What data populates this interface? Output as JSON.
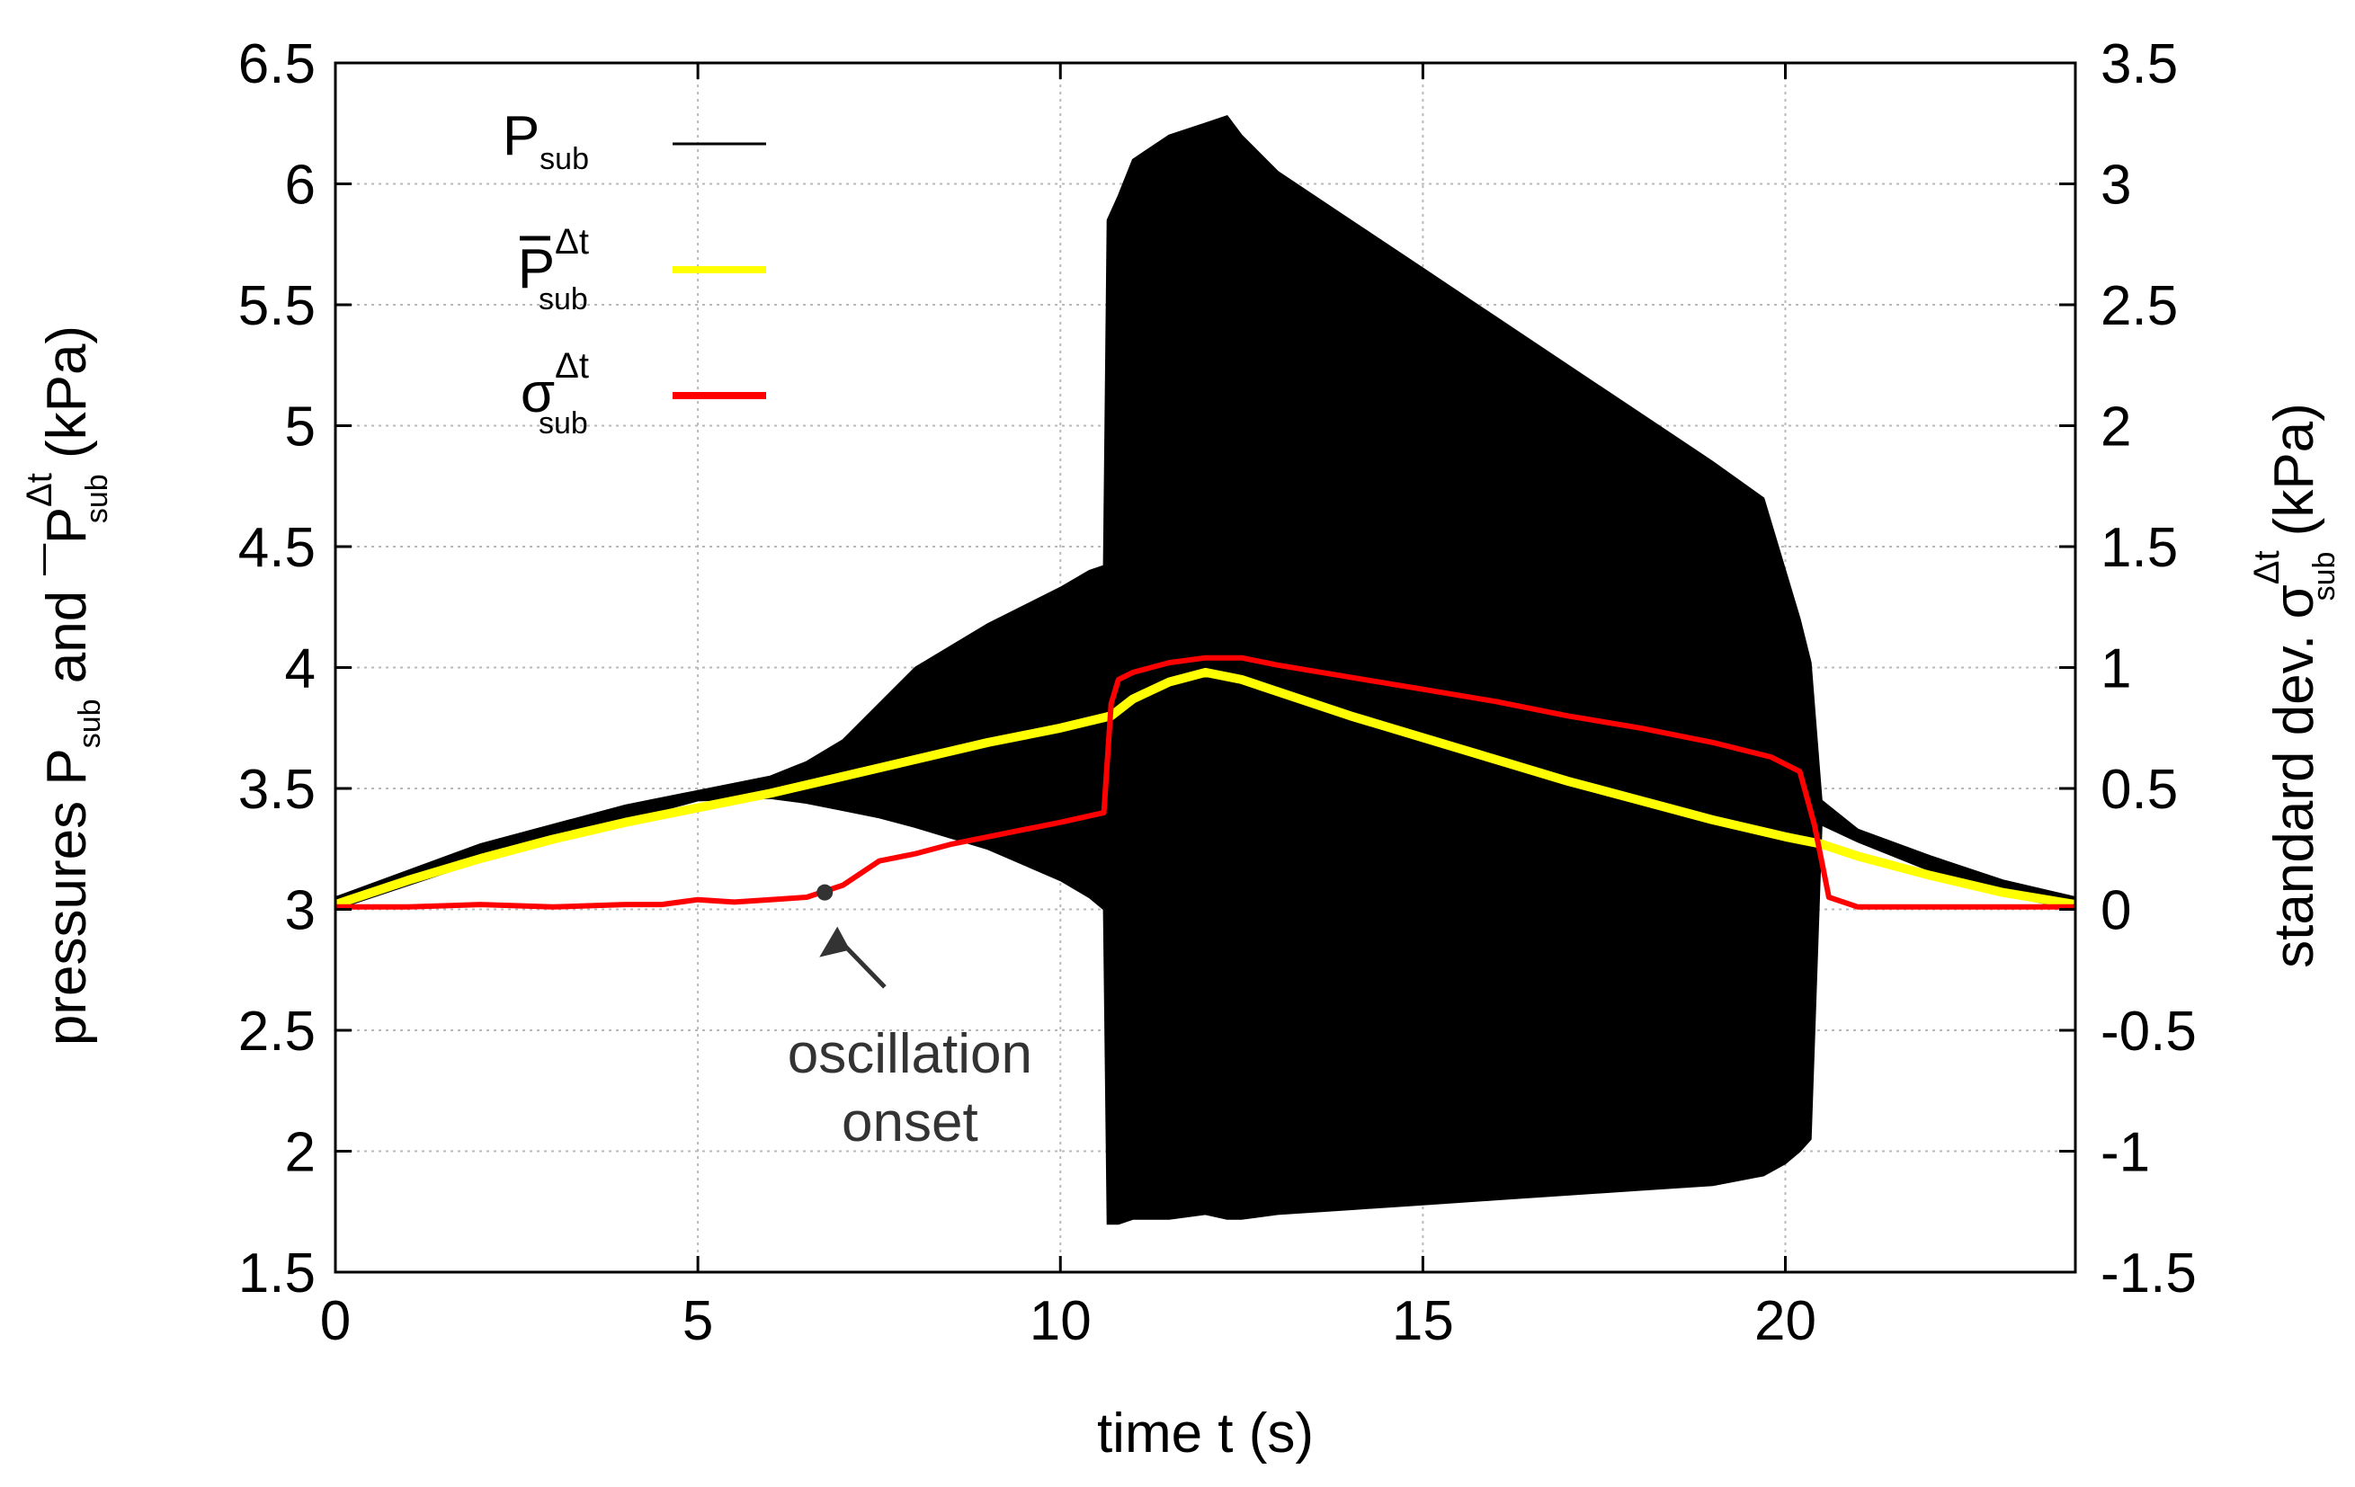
{
  "chart_data": {
    "type": "line",
    "title": "",
    "xlabel": "time t (s)",
    "ylabel": {
      "prefix": "pressures P",
      "sub1": "sub",
      "middle": "and",
      "sym": "P",
      "bar": "¯",
      "sub2": "sub",
      "sup": "Δt",
      "unit": "(kPa)"
    },
    "y2label": {
      "prefix": "standard dev.",
      "sym": "σ",
      "sub": "sub",
      "sup": "Δt",
      "unit": "(kPa)"
    },
    "xlim": [
      0,
      24
    ],
    "ylim": [
      1.5,
      6.5
    ],
    "y2lim": [
      -1.5,
      3.5
    ],
    "xticks": [
      0,
      5,
      10,
      15,
      20
    ],
    "xtick_labels": [
      "0",
      "5",
      "10",
      "15",
      "20"
    ],
    "yticks": [
      1.5,
      2,
      2.5,
      3,
      3.5,
      4,
      4.5,
      5,
      5.5,
      6,
      6.5
    ],
    "ytick_labels": [
      "1.5",
      "2",
      "2.5",
      "3",
      "3.5",
      "4",
      "4.5",
      "5",
      "5.5",
      "6",
      "6.5"
    ],
    "y2ticks": [
      -1.5,
      -1,
      -0.5,
      0,
      0.5,
      1,
      1.5,
      2,
      2.5,
      3,
      3.5
    ],
    "y2tick_labels": [
      "-1.5",
      "-1",
      "-0.5",
      "0",
      "0.5",
      "1",
      "1.5",
      "2",
      "2.5",
      "3",
      "3.5"
    ],
    "grid": true,
    "legend_position": "top-left",
    "legend": [
      {
        "sym": "P",
        "bar": "",
        "sub": "sub",
        "sup": "",
        "color": "#000000",
        "series": "P_sub"
      },
      {
        "sym": "P",
        "bar": "¯",
        "sub": "sub",
        "sup": "Δt",
        "color": "#ffff00",
        "series": "P_sub_mean"
      },
      {
        "sym": "σ",
        "bar": "",
        "sub": "sub",
        "sup": "Δt",
        "color": "#ff0000",
        "series": "sigma_sub"
      }
    ],
    "series": [
      {
        "name": "P_sub",
        "axis": "left",
        "color": "#000000",
        "kind": "oscillation-envelope",
        "x": [
          0,
          2,
          4,
          5,
          6,
          6.5,
          7,
          7.5,
          8,
          9,
          10,
          10.4,
          10.6,
          10.65,
          10.8,
          11,
          11.5,
          12,
          12.3,
          12.5,
          13,
          14,
          15,
          16,
          17,
          18,
          19,
          19.7,
          20.0,
          20.2,
          20.35,
          20.5,
          21,
          22,
          23,
          24
        ],
        "upper": [
          3.05,
          3.27,
          3.43,
          3.49,
          3.55,
          3.61,
          3.7,
          3.85,
          4.0,
          4.18,
          4.33,
          4.4,
          4.42,
          5.85,
          5.95,
          6.1,
          6.2,
          6.25,
          6.28,
          6.2,
          6.05,
          5.85,
          5.65,
          5.45,
          5.25,
          5.05,
          4.85,
          4.7,
          4.4,
          4.2,
          4.02,
          3.45,
          3.33,
          3.22,
          3.12,
          3.05
        ],
        "lower": [
          3.0,
          3.2,
          3.37,
          3.45,
          3.46,
          3.44,
          3.41,
          3.38,
          3.34,
          3.25,
          3.12,
          3.05,
          3.0,
          1.7,
          1.7,
          1.72,
          1.72,
          1.74,
          1.72,
          1.72,
          1.74,
          1.76,
          1.78,
          1.8,
          1.82,
          1.84,
          1.86,
          1.9,
          1.95,
          2.0,
          2.05,
          3.35,
          3.28,
          3.16,
          3.06,
          3.0
        ]
      },
      {
        "name": "P_sub_mean",
        "axis": "left",
        "color": "#ffff00",
        "x": [
          0,
          1,
          2,
          3,
          4,
          5,
          6,
          7,
          8,
          9,
          10,
          10.7,
          11,
          11.5,
          12,
          12.5,
          13,
          14,
          15,
          16,
          17,
          18,
          19,
          20,
          20.5,
          21,
          22,
          23,
          24
        ],
        "y": [
          3.02,
          3.12,
          3.21,
          3.29,
          3.36,
          3.42,
          3.48,
          3.55,
          3.62,
          3.69,
          3.75,
          3.8,
          3.87,
          3.94,
          3.98,
          3.95,
          3.9,
          3.8,
          3.71,
          3.62,
          3.53,
          3.45,
          3.37,
          3.3,
          3.27,
          3.22,
          3.14,
          3.07,
          3.02
        ]
      },
      {
        "name": "sigma_sub",
        "axis": "right",
        "color": "#ff0000",
        "x": [
          0,
          1,
          2,
          3,
          4,
          4.5,
          5,
          5.5,
          6,
          6.5,
          6.7,
          7.0,
          7.5,
          8,
          8.5,
          9,
          9.5,
          10,
          10.3,
          10.6,
          10.7,
          10.8,
          11,
          11.5,
          12,
          12.5,
          13,
          14,
          15,
          16,
          17,
          18,
          19,
          19.8,
          20.2,
          20.4,
          20.6,
          21,
          22,
          23,
          24
        ],
        "y": [
          0.01,
          0.01,
          0.02,
          0.01,
          0.02,
          0.02,
          0.04,
          0.03,
          0.04,
          0.05,
          0.07,
          0.1,
          0.2,
          0.23,
          0.27,
          0.3,
          0.33,
          0.36,
          0.38,
          0.4,
          0.85,
          0.95,
          0.98,
          1.02,
          1.04,
          1.04,
          1.01,
          0.96,
          0.91,
          0.86,
          0.8,
          0.75,
          0.69,
          0.63,
          0.57,
          0.35,
          0.05,
          0.01,
          0.01,
          0.01,
          0.01
        ]
      }
    ],
    "annotations": [
      {
        "text_lines": [
          "oscillation",
          "onset"
        ],
        "x": 6.75,
        "y2": 0.07,
        "text_x": 7.8,
        "text_y2": -0.6
      }
    ]
  }
}
